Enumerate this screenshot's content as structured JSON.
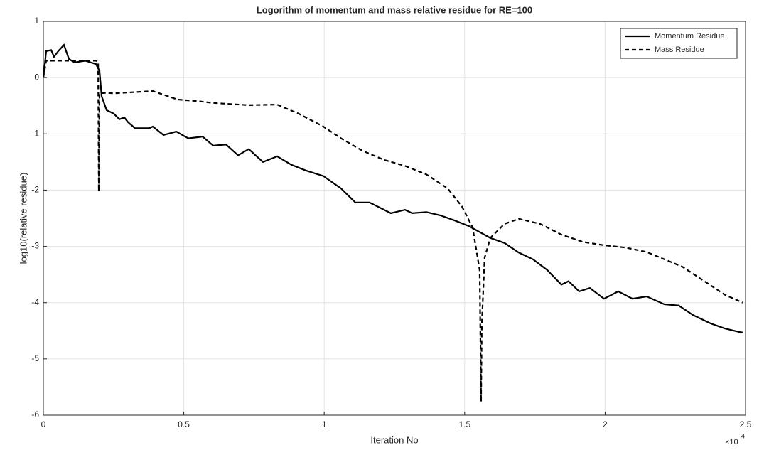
{
  "chart_data": {
    "type": "line",
    "title": "Logorithm of momentum and mass relative residue for RE=100",
    "x_label": "Iteration No",
    "y_label": "log10(relative residue)",
    "x_multiplier": {
      "base": "×10",
      "exponent": "4"
    },
    "xlim": [
      0,
      25000
    ],
    "xticks": [
      {
        "value": 0,
        "label": "0"
      },
      {
        "value": 5000,
        "label": "0.5"
      },
      {
        "value": 10000,
        "label": "1"
      },
      {
        "value": 15000,
        "label": "1.5"
      },
      {
        "value": 20000,
        "label": "2"
      },
      {
        "value": 25000,
        "label": "2.5"
      }
    ],
    "ylim": [
      -6,
      1
    ],
    "yticks": [
      -6,
      -5,
      -4,
      -3,
      -2,
      -1,
      0,
      1
    ],
    "grid": true,
    "legend_position": "upper-right",
    "series": [
      {
        "name": "Momentum Residue",
        "color": "#000000",
        "dash": "solid",
        "x": [
          0,
          101,
          278,
          380,
          531,
          734,
          911,
          1113,
          1493,
          1872,
          1999,
          2075,
          2252,
          2505,
          2707,
          2884,
          3011,
          3264,
          3770,
          3896,
          4276,
          4731,
          5161,
          5667,
          6047,
          6502,
          6932,
          7312,
          7818,
          8324,
          8830,
          9335,
          9968,
          10600,
          11107,
          11613,
          12372,
          12878,
          13131,
          13637,
          14143,
          14649,
          15155,
          15914,
          16420,
          16926,
          17432,
          17938,
          18444,
          18697,
          19076,
          19456,
          19962,
          20468,
          20974,
          21480,
          22112,
          22618,
          23124,
          23757,
          24263,
          24769,
          24895
        ],
        "values": [
          0,
          0.47,
          0.49,
          0.37,
          0.47,
          0.58,
          0.33,
          0.27,
          0.3,
          0.24,
          0.12,
          -0.33,
          -0.58,
          -0.64,
          -0.74,
          -0.71,
          -0.79,
          -0.9,
          -0.9,
          -0.87,
          -1.02,
          -0.96,
          -1.08,
          -1.05,
          -1.21,
          -1.19,
          -1.38,
          -1.27,
          -1.5,
          -1.4,
          -1.55,
          -1.65,
          -1.75,
          -1.97,
          -2.22,
          -2.22,
          -2.41,
          -2.35,
          -2.41,
          -2.39,
          -2.45,
          -2.54,
          -2.64,
          -2.85,
          -2.94,
          -3.11,
          -3.23,
          -3.42,
          -3.68,
          -3.62,
          -3.8,
          -3.74,
          -3.93,
          -3.8,
          -3.93,
          -3.89,
          -4.03,
          -4.05,
          -4.22,
          -4.37,
          -4.46,
          -4.52,
          -4.53
        ]
      },
      {
        "name": "Mass Residue",
        "color": "#000000",
        "dash": "dashed",
        "x": [
          0,
          100,
          1872,
          1950,
          1973,
          2000,
          2252,
          2505,
          3517,
          3900,
          4782,
          5541,
          6047,
          7312,
          8324,
          9083,
          9968,
          10600,
          11360,
          12119,
          12878,
          13637,
          14396,
          14902,
          15281,
          15534,
          15585,
          15610,
          15711,
          15914,
          16420,
          16926,
          17685,
          18444,
          19203,
          19962,
          20721,
          21480,
          22112,
          22745,
          23504,
          24263,
          24895
        ],
        "values": [
          0,
          0.3,
          0.3,
          0.28,
          -2.02,
          -0.28,
          -0.27,
          -0.28,
          -0.25,
          -0.24,
          -0.39,
          -0.42,
          -0.45,
          -0.49,
          -0.48,
          -0.64,
          -0.87,
          -1.08,
          -1.3,
          -1.46,
          -1.57,
          -1.72,
          -1.97,
          -2.29,
          -2.66,
          -3.42,
          -5.76,
          -4.4,
          -3.2,
          -2.85,
          -2.6,
          -2.51,
          -2.6,
          -2.79,
          -2.92,
          -2.98,
          -3.02,
          -3.1,
          -3.23,
          -3.36,
          -3.61,
          -3.86,
          -4.0
        ]
      }
    ]
  }
}
